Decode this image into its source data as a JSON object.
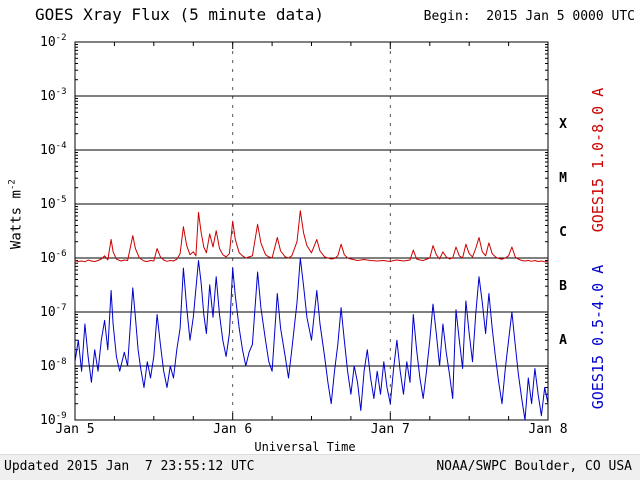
{
  "header": {
    "title": "GOES Xray Flux (5 minute data)",
    "begin_label": "Begin:  2015 Jan 5 0000 UTC"
  },
  "axis_labels": {
    "x": "Universal Time",
    "y_base": "Watts m",
    "y_exp": "-2"
  },
  "footer": {
    "updated": "Updated 2015 Jan  7 23:55:12 UTC",
    "credit": "NOAA/SWPC Boulder, CO USA"
  },
  "colors": {
    "long_channel": "#cc0000",
    "short_channel": "#0000cc",
    "grid": "#000000",
    "day_divider": "#555555",
    "footer_bg": "#efefef"
  },
  "chart_data": {
    "type": "line",
    "title": "GOES Xray Flux (5 minute data)",
    "xlabel": "Universal Time",
    "ylabel": "Watts m^-2",
    "x_unit": "hours since 2015 Jan 5 0000 UTC",
    "xlim": [
      0,
      72
    ],
    "x_tick_hours": [
      0,
      24,
      48,
      72
    ],
    "x_tick_labels": [
      "Jan 5",
      "Jan 6",
      "Jan 7",
      "Jan 8"
    ],
    "x_minor_tick_step_hours": 6,
    "y_scale": "log",
    "ylim": [
      1e-09,
      0.01
    ],
    "y_tick_exponents": [
      -2,
      -3,
      -4,
      -5,
      -6,
      -7,
      -8,
      -9
    ],
    "grid": {
      "horizontal": "solid black line at each decade",
      "vertical": "dashed line at each day boundary"
    },
    "flare_classes": [
      {
        "label": "X",
        "log10_mid": -3.5
      },
      {
        "label": "M",
        "log10_mid": -4.5
      },
      {
        "label": "C",
        "log10_mid": -5.5
      },
      {
        "label": "B",
        "log10_mid": -6.5
      },
      {
        "label": "A",
        "log10_mid": -7.5
      }
    ],
    "legend_position": "right, rotated vertical",
    "series": [
      {
        "name": "GOES15 1.0-8.0 A",
        "color": "#cc0000",
        "points": [
          [
            0,
            9e-07
          ],
          [
            0.5,
            8.6e-07
          ],
          [
            1,
            8.8e-07
          ],
          [
            1.5,
            8.5e-07
          ],
          [
            2,
            9.2e-07
          ],
          [
            2.5,
            8.8e-07
          ],
          [
            3,
            8.6e-07
          ],
          [
            3.5,
            9e-07
          ],
          [
            4,
            9.6e-07
          ],
          [
            4.5,
            1.1e-06
          ],
          [
            5,
            9.2e-07
          ],
          [
            5.5,
            2.2e-06
          ],
          [
            5.8,
            1.3e-06
          ],
          [
            6.3,
            9.5e-07
          ],
          [
            7,
            8.8e-07
          ],
          [
            7.5,
            9.2e-07
          ],
          [
            8,
            9e-07
          ],
          [
            8.8,
            2.6e-06
          ],
          [
            9.2,
            1.5e-06
          ],
          [
            9.8,
            1e-06
          ],
          [
            10.5,
            8.8e-07
          ],
          [
            11,
            8.6e-07
          ],
          [
            11.5,
            9e-07
          ],
          [
            12,
            8.8e-07
          ],
          [
            12.5,
            1.5e-06
          ],
          [
            13,
            1.05e-06
          ],
          [
            13.5,
            9.2e-07
          ],
          [
            14,
            8.7e-07
          ],
          [
            14.5,
            9e-07
          ],
          [
            15,
            8.8e-07
          ],
          [
            15.5,
            9.5e-07
          ],
          [
            16,
            1.2e-06
          ],
          [
            16.5,
            3.8e-06
          ],
          [
            17,
            1.7e-06
          ],
          [
            17.5,
            1.15e-06
          ],
          [
            18,
            1.3e-06
          ],
          [
            18.4,
            1.1e-06
          ],
          [
            18.8,
            7e-06
          ],
          [
            19.2,
            3e-06
          ],
          [
            19.6,
            1.6e-06
          ],
          [
            20,
            1.25e-06
          ],
          [
            20.5,
            2.8e-06
          ],
          [
            21,
            1.6e-06
          ],
          [
            21.5,
            3.2e-06
          ],
          [
            22,
            1.5e-06
          ],
          [
            22.5,
            1.15e-06
          ],
          [
            23,
            1.05e-06
          ],
          [
            23.5,
            1.2e-06
          ],
          [
            24,
            4.8e-06
          ],
          [
            24.4,
            2.2e-06
          ],
          [
            25,
            1.25e-06
          ],
          [
            25.5,
            1.1e-06
          ],
          [
            26,
            1e-06
          ],
          [
            26.5,
            1.05e-06
          ],
          [
            27,
            1.1e-06
          ],
          [
            27.8,
            4.2e-06
          ],
          [
            28.3,
            1.9e-06
          ],
          [
            29,
            1.15e-06
          ],
          [
            29.5,
            1.05e-06
          ],
          [
            30,
            1e-06
          ],
          [
            30.8,
            2.4e-06
          ],
          [
            31.3,
            1.35e-06
          ],
          [
            32,
            1.05e-06
          ],
          [
            32.5,
            1e-06
          ],
          [
            33,
            1.1e-06
          ],
          [
            33.8,
            2e-06
          ],
          [
            34.3,
            7.5e-06
          ],
          [
            34.8,
            2.9e-06
          ],
          [
            35.3,
            1.7e-06
          ],
          [
            36,
            1.25e-06
          ],
          [
            36.8,
            2.2e-06
          ],
          [
            37.3,
            1.35e-06
          ],
          [
            38,
            1.05e-06
          ],
          [
            38.5,
            1e-06
          ],
          [
            39,
            9.6e-07
          ],
          [
            39.5,
            9.8e-07
          ],
          [
            40,
            1.1e-06
          ],
          [
            40.5,
            1.8e-06
          ],
          [
            41,
            1.15e-06
          ],
          [
            41.5,
            1e-06
          ],
          [
            42,
            9.6e-07
          ],
          [
            43,
            9e-07
          ],
          [
            44,
            9.4e-07
          ],
          [
            45,
            9e-07
          ],
          [
            46,
            8.8e-07
          ],
          [
            47,
            9e-07
          ],
          [
            48,
            8.6e-07
          ],
          [
            48.5,
            9e-07
          ],
          [
            49,
            9.2e-07
          ],
          [
            50,
            8.8e-07
          ],
          [
            51,
            9.2e-07
          ],
          [
            51.5,
            1.4e-06
          ],
          [
            52,
            9.6e-07
          ],
          [
            52.5,
            9.2e-07
          ],
          [
            53,
            9e-07
          ],
          [
            54,
            1e-06
          ],
          [
            54.5,
            1.7e-06
          ],
          [
            55,
            1.15e-06
          ],
          [
            55.5,
            9.6e-07
          ],
          [
            56,
            1.3e-06
          ],
          [
            56.5,
            1.05e-06
          ],
          [
            57,
            9.6e-07
          ],
          [
            57.5,
            1e-06
          ],
          [
            58,
            1.6e-06
          ],
          [
            58.5,
            1.1e-06
          ],
          [
            59,
            1e-06
          ],
          [
            59.5,
            1.8e-06
          ],
          [
            60,
            1.2e-06
          ],
          [
            60.5,
            1.05e-06
          ],
          [
            61,
            1.5e-06
          ],
          [
            61.5,
            2.4e-06
          ],
          [
            62,
            1.3e-06
          ],
          [
            62.5,
            1.1e-06
          ],
          [
            63,
            1.9e-06
          ],
          [
            63.5,
            1.2e-06
          ],
          [
            64,
            1.05e-06
          ],
          [
            64.5,
            9.8e-07
          ],
          [
            65,
            9.5e-07
          ],
          [
            65.5,
            1e-06
          ],
          [
            66,
            1.1e-06
          ],
          [
            66.5,
            1.6e-06
          ],
          [
            67,
            1.05e-06
          ],
          [
            67.5,
            9.5e-07
          ],
          [
            68,
            9e-07
          ],
          [
            68.5,
            8.8e-07
          ],
          [
            69,
            9e-07
          ],
          [
            69.5,
            8.7e-07
          ],
          [
            70,
            9e-07
          ],
          [
            70.5,
            8.6e-07
          ],
          [
            71,
            8.8e-07
          ],
          [
            71.5,
            8.5e-07
          ],
          [
            72,
            8.8e-07
          ]
        ]
      },
      {
        "name": "GOES15 0.5-4.0 A",
        "color": "#0000cc",
        "points": [
          [
            0,
            1.2e-08
          ],
          [
            0.5,
            3e-08
          ],
          [
            1,
            8e-09
          ],
          [
            1.5,
            6e-08
          ],
          [
            2,
            1.5e-08
          ],
          [
            2.5,
            5e-09
          ],
          [
            3,
            2e-08
          ],
          [
            3.5,
            8e-09
          ],
          [
            4,
            3e-08
          ],
          [
            4.5,
            7e-08
          ],
          [
            5,
            2e-08
          ],
          [
            5.5,
            2.5e-07
          ],
          [
            5.8,
            6e-08
          ],
          [
            6.3,
            1.5e-08
          ],
          [
            6.8,
            8e-09
          ],
          [
            7.5,
            1.8e-08
          ],
          [
            8,
            1e-08
          ],
          [
            8.8,
            2.8e-07
          ],
          [
            9.2,
            8e-08
          ],
          [
            9.6,
            2e-08
          ],
          [
            10,
            9e-09
          ],
          [
            10.5,
            4e-09
          ],
          [
            11,
            1.2e-08
          ],
          [
            11.5,
            6e-09
          ],
          [
            12,
            1.5e-08
          ],
          [
            12.5,
            9e-08
          ],
          [
            13,
            2.5e-08
          ],
          [
            13.5,
            8e-09
          ],
          [
            14,
            4e-09
          ],
          [
            14.5,
            1e-08
          ],
          [
            15,
            6e-09
          ],
          [
            15.5,
            2e-08
          ],
          [
            16,
            5e-08
          ],
          [
            16.5,
            6.5e-07
          ],
          [
            17,
            1.2e-07
          ],
          [
            17.5,
            3e-08
          ],
          [
            18,
            8e-08
          ],
          [
            18.8,
            9e-07
          ],
          [
            19.2,
            3.5e-07
          ],
          [
            19.6,
            9e-08
          ],
          [
            20,
            4e-08
          ],
          [
            20.5,
            3.2e-07
          ],
          [
            21,
            8e-08
          ],
          [
            21.5,
            4.5e-07
          ],
          [
            22,
            9e-08
          ],
          [
            22.5,
            3e-08
          ],
          [
            23,
            1.5e-08
          ],
          [
            23.5,
            4e-08
          ],
          [
            24,
            6.5e-07
          ],
          [
            24.4,
            2e-07
          ],
          [
            25,
            5e-08
          ],
          [
            25.5,
            2e-08
          ],
          [
            26,
            1e-08
          ],
          [
            26.5,
            1.8e-08
          ],
          [
            27,
            2.5e-08
          ],
          [
            27.8,
            5.5e-07
          ],
          [
            28.3,
            1.2e-07
          ],
          [
            29,
            3e-08
          ],
          [
            29.5,
            1.2e-08
          ],
          [
            30,
            8e-09
          ],
          [
            30.8,
            2.2e-07
          ],
          [
            31.3,
            5e-08
          ],
          [
            32,
            1.5e-08
          ],
          [
            32.5,
            6e-09
          ],
          [
            33,
            2e-08
          ],
          [
            33.8,
            1.5e-07
          ],
          [
            34.3,
            1e-06
          ],
          [
            34.8,
            3e-07
          ],
          [
            35.3,
            8e-08
          ],
          [
            36,
            3e-08
          ],
          [
            36.8,
            2.5e-07
          ],
          [
            37.3,
            6e-08
          ],
          [
            38,
            1.5e-08
          ],
          [
            38.5,
            5e-09
          ],
          [
            39,
            2e-09
          ],
          [
            39.5,
            8e-09
          ],
          [
            40,
            2.5e-08
          ],
          [
            40.5,
            1.2e-07
          ],
          [
            41,
            3e-08
          ],
          [
            41.5,
            8e-09
          ],
          [
            42,
            3e-09
          ],
          [
            42.5,
            1e-08
          ],
          [
            43,
            5e-09
          ],
          [
            43.5,
            1.5e-09
          ],
          [
            44,
            8e-09
          ],
          [
            44.5,
            2e-08
          ],
          [
            45,
            6e-09
          ],
          [
            45.5,
            2.5e-09
          ],
          [
            46,
            8e-09
          ],
          [
            46.5,
            3e-09
          ],
          [
            47,
            1.2e-08
          ],
          [
            47.5,
            4e-09
          ],
          [
            48,
            2e-09
          ],
          [
            48.5,
            9e-09
          ],
          [
            49,
            3e-08
          ],
          [
            49.5,
            8e-09
          ],
          [
            50,
            3e-09
          ],
          [
            50.5,
            1.2e-08
          ],
          [
            51,
            5e-09
          ],
          [
            51.5,
            9e-08
          ],
          [
            52,
            2e-08
          ],
          [
            52.5,
            6e-09
          ],
          [
            53,
            2.5e-09
          ],
          [
            53.5,
            8e-09
          ],
          [
            54,
            3e-08
          ],
          [
            54.5,
            1.4e-07
          ],
          [
            55,
            4e-08
          ],
          [
            55.5,
            1e-08
          ],
          [
            56,
            6e-08
          ],
          [
            56.5,
            1.8e-08
          ],
          [
            57,
            7e-09
          ],
          [
            57.5,
            2.5e-09
          ],
          [
            58,
            1.1e-07
          ],
          [
            58.5,
            3e-08
          ],
          [
            59,
            9e-09
          ],
          [
            59.5,
            1.6e-07
          ],
          [
            60,
            4e-08
          ],
          [
            60.5,
            1.2e-08
          ],
          [
            61,
            9e-08
          ],
          [
            61.5,
            4.5e-07
          ],
          [
            62,
            1.5e-07
          ],
          [
            62.5,
            4e-08
          ],
          [
            63,
            2.2e-07
          ],
          [
            63.5,
            5e-08
          ],
          [
            64,
            1.5e-08
          ],
          [
            64.5,
            5e-09
          ],
          [
            65,
            2e-09
          ],
          [
            65.5,
            9e-09
          ],
          [
            66,
            3e-08
          ],
          [
            66.5,
            1e-07
          ],
          [
            67,
            2.5e-08
          ],
          [
            67.5,
            7e-09
          ],
          [
            68,
            2.5e-09
          ],
          [
            68.5,
            1e-09
          ],
          [
            69,
            6e-09
          ],
          [
            69.5,
            2e-09
          ],
          [
            70,
            9e-09
          ],
          [
            70.5,
            3e-09
          ],
          [
            71,
            1.2e-09
          ],
          [
            71.5,
            4e-09
          ],
          [
            72,
            2e-09
          ]
        ]
      }
    ]
  }
}
